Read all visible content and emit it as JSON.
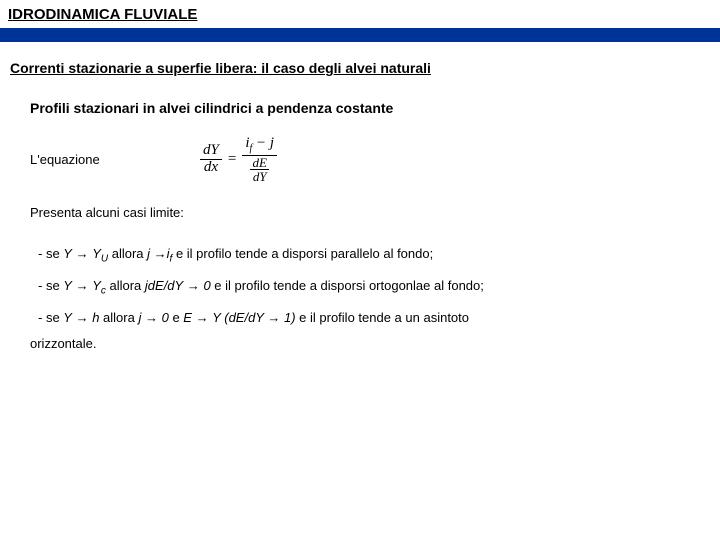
{
  "header": {
    "title": "IDRODINAMICA FLUVIALE"
  },
  "subtitle": "Correnti stazionarie a superfie libera: il caso degli alvei naturali",
  "section": "Profili stazionari in alvei cilindrici a pendenza costante",
  "eq_label": "L'equazione",
  "eq": {
    "lhs_num": "dY",
    "lhs_den": "dx",
    "eq_sign": "=",
    "rhs_num_a": "i",
    "rhs_num_a_sub": "f",
    "rhs_num_mid": " − ",
    "rhs_num_b": "j",
    "rhs_den_num": "dE",
    "rhs_den_den": "dY"
  },
  "presenta": "Presenta alcuni casi limite:",
  "case1": {
    "pre": "- se ",
    "Y": "Y",
    "arr1": " → ",
    "Yu": "Y",
    "Yu_sub": "U",
    "mid1": " allora ",
    "j": "j",
    "arr2": " →",
    "if": "i",
    "if_sub": "f",
    "tail": "  e  il profilo tende a disporsi parallelo al fondo;"
  },
  "case2": {
    "pre": "- se ",
    "Y": "Y",
    "arr1": " → ",
    "Yc": "Y",
    "Yc_sub": "c",
    "mid1": " allora ",
    "expr": "jdE/dY",
    "arr2": " → ",
    "zero": "0",
    "tail": " e  il profilo tende a disporsi ortogonlae al fondo;"
  },
  "case3": {
    "pre": "- se ",
    "Y": "Y",
    "arr1": " → ",
    "h": "h",
    "mid1": "  allora ",
    "j": "j",
    "arr2": " → ",
    "zero": "0",
    "and": " e  ",
    "E": "E",
    "arr3": " → ",
    "Y2": "Y",
    "paren": " (dE/dY → 1)",
    "tail": " e  il profilo tende a un asintoto"
  },
  "orizz": "orizzontale.",
  "colors": {
    "bluebar": "#003399",
    "bg": "#ffffff",
    "text": "#000000"
  }
}
